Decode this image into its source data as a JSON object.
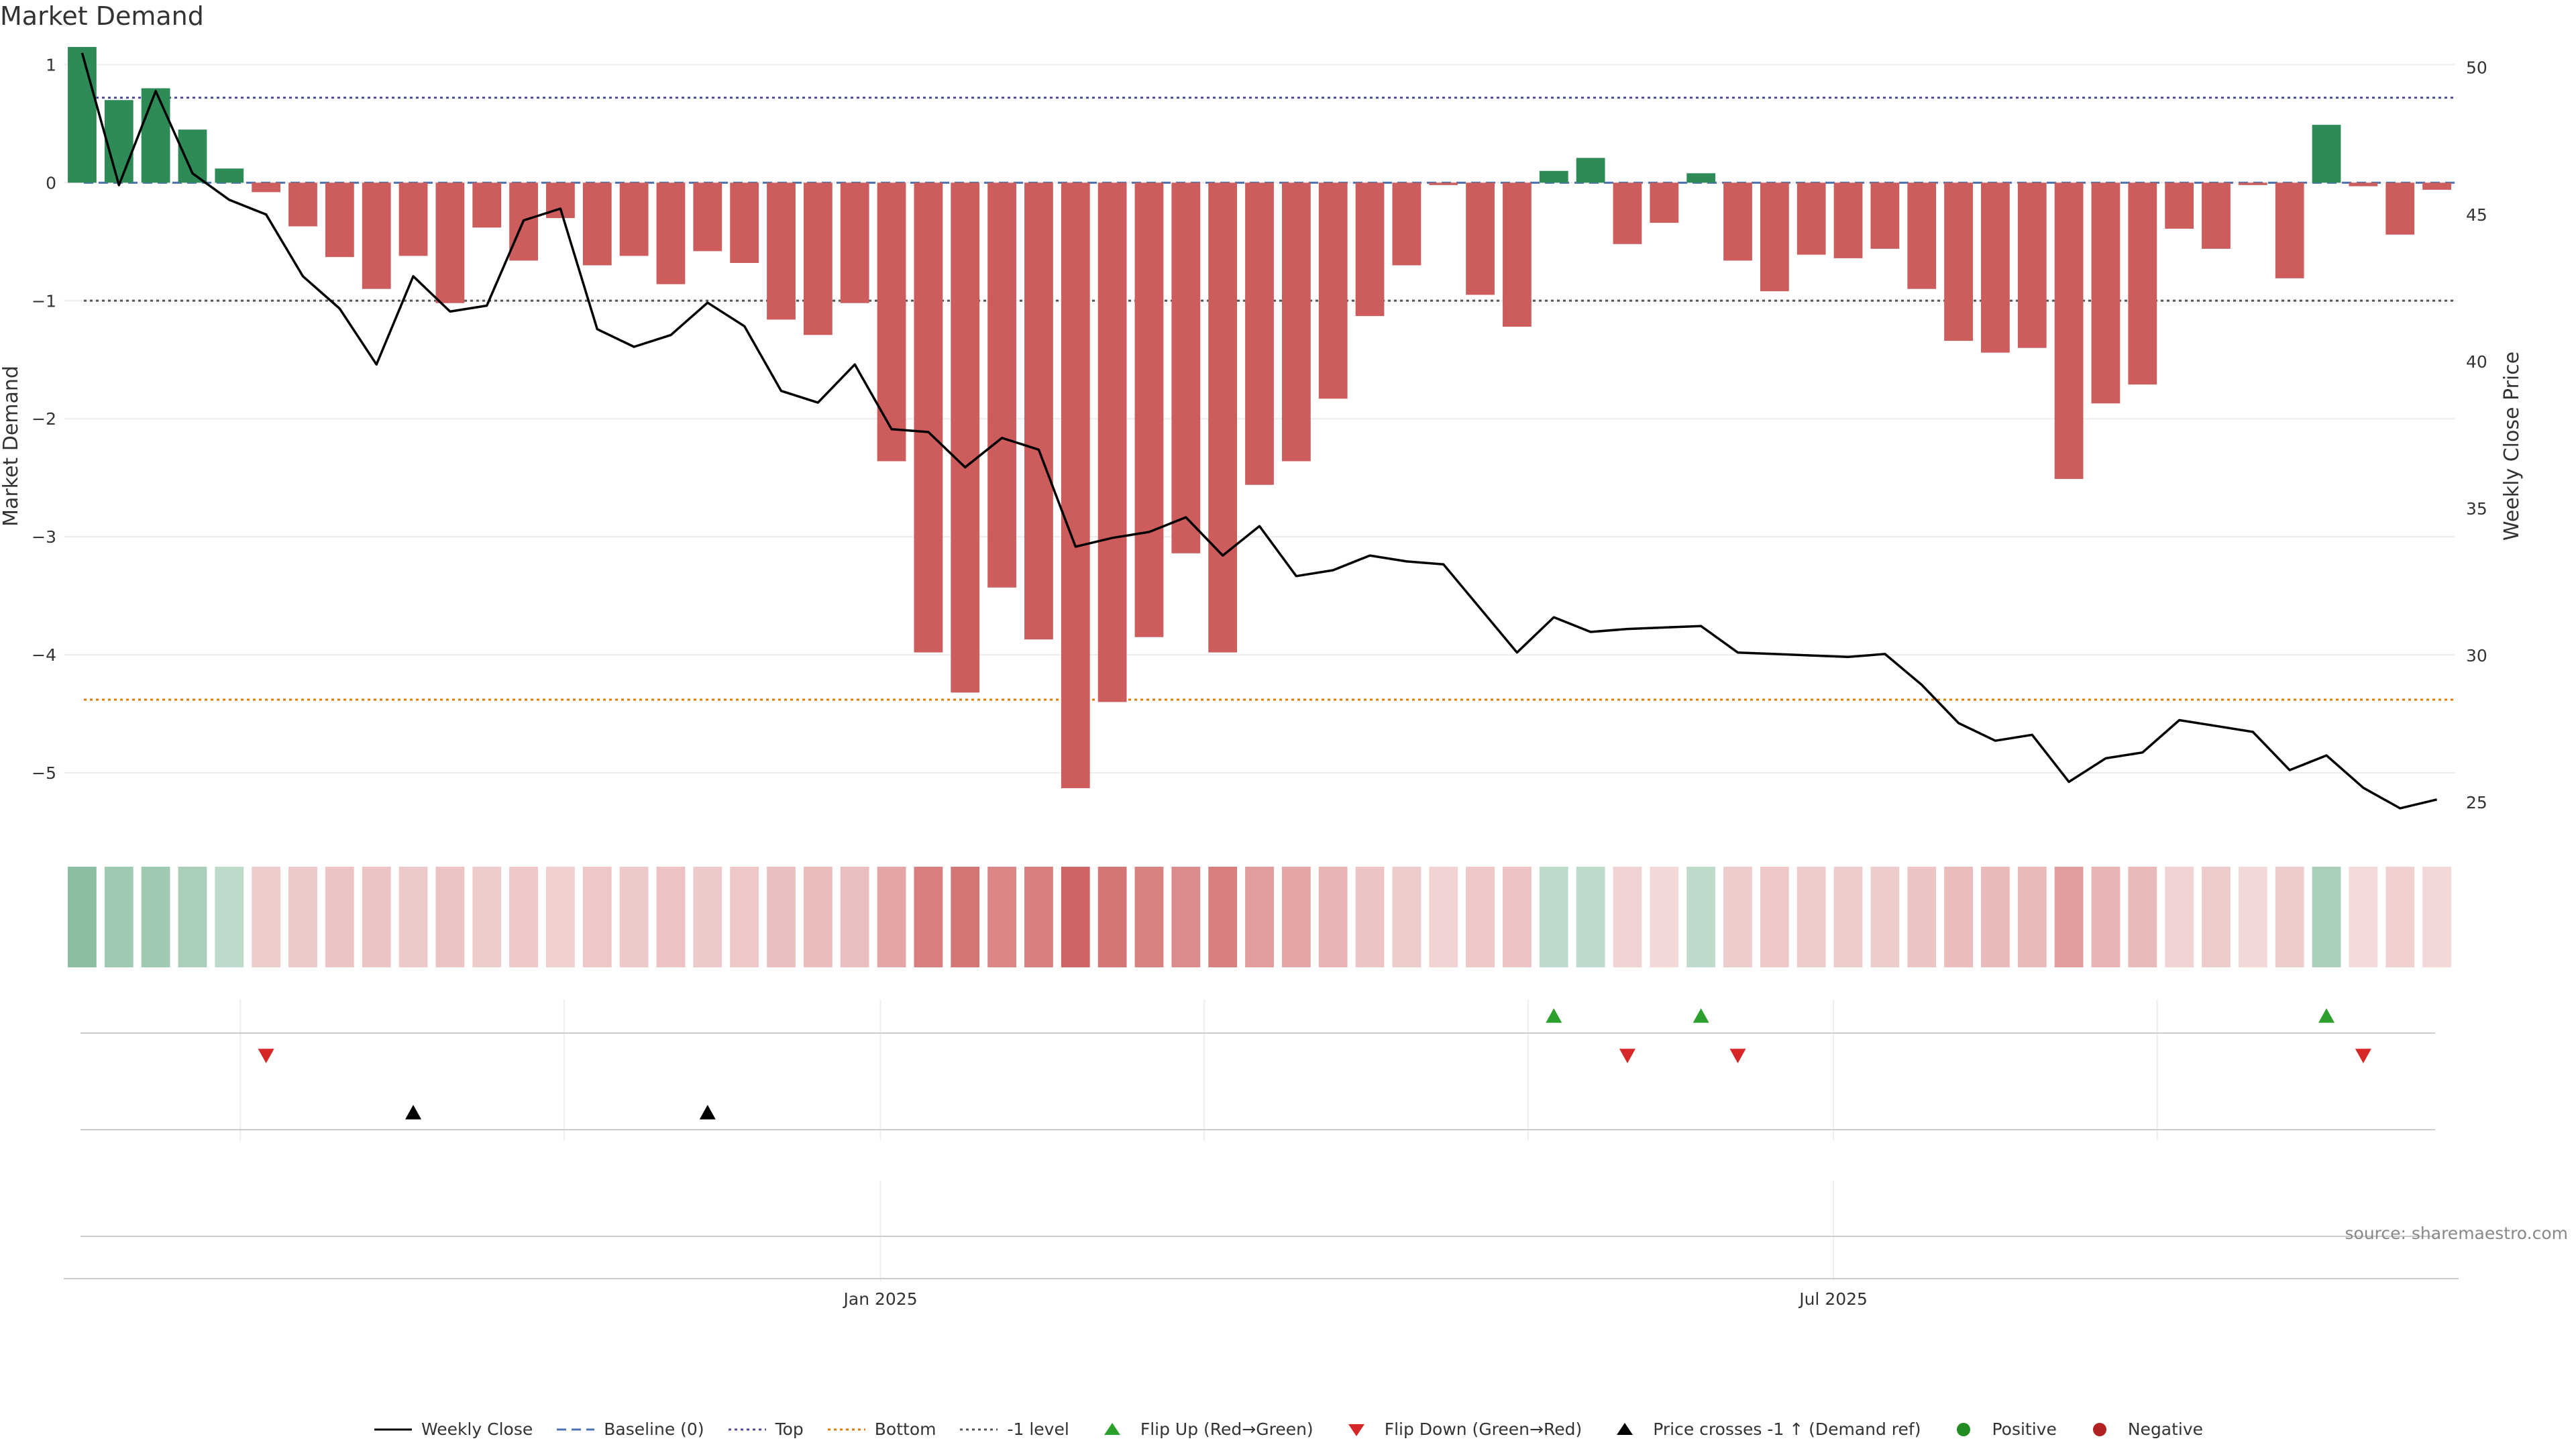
{
  "title": "Market Demand",
  "source": "source: sharemaestro.com",
  "colors": {
    "positive": "#2e8b57",
    "negative": "#cd5c5c",
    "price_line": "#000000",
    "baseline": "#4c72b0",
    "top": "#4c4c9a",
    "bottom": "#e07b00",
    "minus_one": "#555555",
    "flip_up": "#2ca02c",
    "flip_down": "#d62728",
    "cross": "#000000",
    "legend_positive": "#228b22",
    "legend_negative": "#b22222"
  },
  "legend": [
    {
      "key": "weekly-close",
      "label": "Weekly Close"
    },
    {
      "key": "baseline",
      "label": "Baseline (0)"
    },
    {
      "key": "top",
      "label": "Top"
    },
    {
      "key": "bottom",
      "label": "Bottom"
    },
    {
      "key": "minus-one",
      "label": "-1 level"
    },
    {
      "key": "flip-up",
      "label": "Flip Up (Red→Green)"
    },
    {
      "key": "flip-down",
      "label": "Flip Down (Green→Red)"
    },
    {
      "key": "price-cross",
      "label": "Price crosses -1 ↑ (Demand ref)"
    },
    {
      "key": "positive",
      "label": "Positive"
    },
    {
      "key": "negative",
      "label": "Negative"
    }
  ],
  "chart_data": {
    "type": "bar",
    "title": "Market Demand",
    "ylabel": "Market Demand",
    "y2label": "Weekly Close Price",
    "ylim": [
      -5.5,
      1.15
    ],
    "y2lim": [
      24,
      50.7
    ],
    "yticks": [
      1,
      0,
      -1,
      -2,
      -3,
      -4,
      -5
    ],
    "y2ticks": [
      50,
      45,
      40,
      35,
      30,
      25
    ],
    "x_ticks": [
      {
        "label": "Jan 2025",
        "index": 21.7
      },
      {
        "label": "Jul 2025",
        "index": 47.6
      }
    ],
    "reference_lines": {
      "baseline": 0,
      "top": 0.72,
      "bottom": -4.38,
      "minus_one": -1
    },
    "demand": [
      1.15,
      0.7,
      0.8,
      0.45,
      0.12,
      -0.08,
      -0.37,
      -0.63,
      -0.9,
      -0.62,
      -1.02,
      -0.38,
      -0.66,
      -0.3,
      -0.7,
      -0.62,
      -0.86,
      -0.58,
      -0.68,
      -1.16,
      -1.29,
      -1.02,
      -2.36,
      -3.98,
      -4.32,
      -3.43,
      -3.87,
      -5.13,
      -4.4,
      -3.85,
      -3.14,
      -3.98,
      -2.56,
      -2.36,
      -1.83,
      -1.13,
      -0.7,
      -0.02,
      -0.95,
      -1.22,
      0.1,
      0.21,
      -0.52,
      -0.34,
      0.08,
      -0.66,
      -0.92,
      -0.61,
      -0.64,
      -0.56,
      -0.9,
      -1.34,
      -1.44,
      -1.4,
      -2.51,
      -1.87,
      -1.71,
      -0.39,
      -0.56,
      -0.02,
      -0.81,
      0.49,
      -0.03,
      -0.44,
      -0.06
    ],
    "price": [
      50.5,
      46.0,
      49.2,
      46.4,
      45.5,
      45.0,
      42.9,
      41.8,
      39.9,
      42.9,
      41.7,
      41.9,
      44.8,
      45.2,
      41.1,
      40.5,
      40.9,
      42.0,
      41.2,
      39.0,
      38.6,
      39.9,
      37.7,
      37.6,
      36.4,
      37.4,
      37.0,
      33.7,
      34.0,
      34.2,
      34.7,
      33.4,
      34.4,
      32.7,
      32.9,
      33.4,
      33.2,
      33.1,
      31.6,
      30.1,
      31.3,
      30.8,
      30.9,
      30.95,
      31.0,
      30.1,
      30.05,
      30.0,
      29.95,
      30.05,
      29.0,
      27.7,
      27.1,
      27.3,
      25.7,
      26.5,
      26.7,
      27.8,
      27.6,
      27.4,
      26.1,
      26.6,
      25.5,
      24.8,
      25.1
    ],
    "heat": [
      0.55,
      0.45,
      0.45,
      0.4,
      0.3,
      0.3,
      0.32,
      0.35,
      0.35,
      0.32,
      0.35,
      0.3,
      0.33,
      0.28,
      0.33,
      0.32,
      0.36,
      0.32,
      0.33,
      0.38,
      0.4,
      0.38,
      0.55,
      0.8,
      0.85,
      0.75,
      0.8,
      0.97,
      0.85,
      0.78,
      0.72,
      0.8,
      0.6,
      0.55,
      0.45,
      0.35,
      0.3,
      0.25,
      0.33,
      0.36,
      0.3,
      0.3,
      0.25,
      0.22,
      0.3,
      0.3,
      0.33,
      0.3,
      0.3,
      0.3,
      0.35,
      0.4,
      0.42,
      0.42,
      0.6,
      0.45,
      0.42,
      0.25,
      0.3,
      0.22,
      0.3,
      0.4,
      0.2,
      0.28,
      0.22
    ],
    "flip_up": [
      40,
      44,
      61
    ],
    "flip_down": [
      5,
      42,
      45,
      62
    ],
    "price_cross": [
      9,
      17
    ]
  }
}
